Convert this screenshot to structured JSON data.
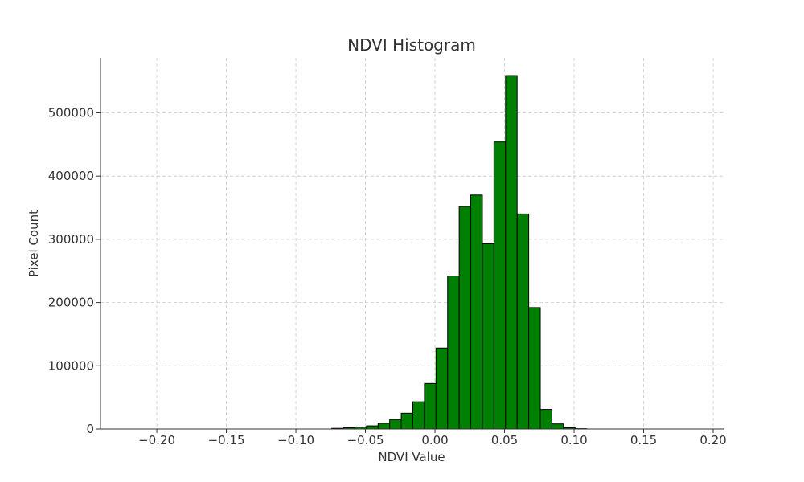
{
  "chart_data": {
    "type": "bar",
    "title": "NDVI Histogram",
    "xlabel": "NDVI Value",
    "ylabel": "Pixel Count",
    "xlim": [
      -0.2405,
      0.2075
    ],
    "ylim": [
      0,
      587000
    ],
    "xticks": [
      -0.2,
      -0.15,
      -0.1,
      -0.05,
      0.0,
      0.05,
      0.1,
      0.15,
      0.2
    ],
    "xtick_labels": [
      "−0.20",
      "−0.15",
      "−0.10",
      "−0.05",
      "0.00",
      "0.05",
      "0.10",
      "0.15",
      "0.20"
    ],
    "yticks": [
      0,
      100000,
      200000,
      300000,
      400000,
      500000
    ],
    "ytick_labels": [
      "0",
      "100000",
      "200000",
      "300000",
      "400000",
      "500000"
    ],
    "grid": true,
    "bar_color": "#008000",
    "bin_width": 0.00833,
    "bin_start": -0.2325,
    "values": [
      0,
      0,
      0,
      0,
      0,
      0,
      0,
      0,
      0,
      0,
      0,
      0,
      0,
      0,
      0,
      0,
      0,
      0,
      0,
      1000,
      2000,
      3000,
      5000,
      9000,
      15000,
      25000,
      43000,
      72000,
      128000,
      242000,
      352000,
      370000,
      293000,
      454000,
      559000,
      340000,
      192000,
      31000,
      8000,
      2000,
      500,
      0,
      0,
      0,
      0,
      0,
      0,
      0,
      0,
      0,
      0,
      0,
      0,
      0
    ]
  }
}
